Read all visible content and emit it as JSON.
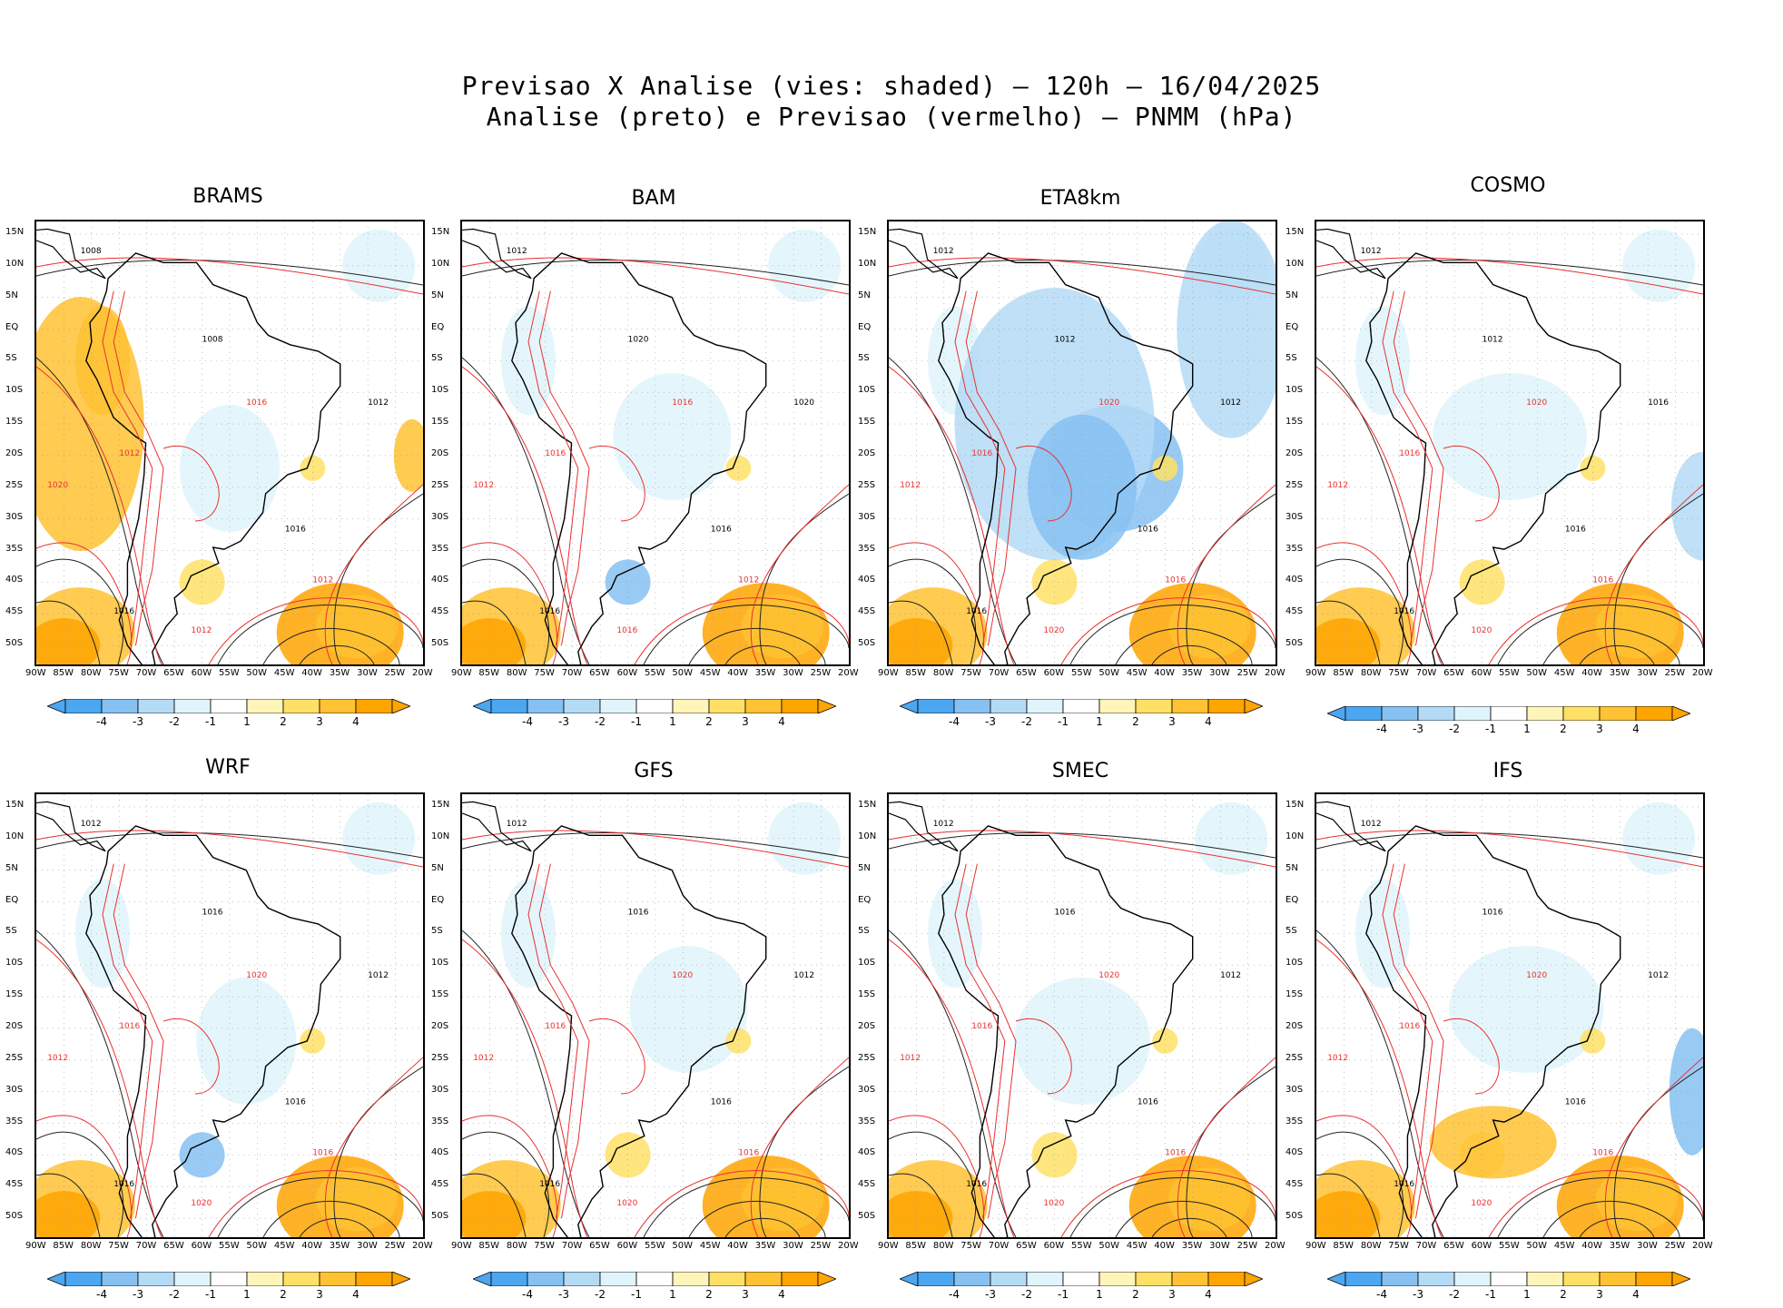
{
  "title": {
    "line1": "Previsao X Analise (vies: shaded) – 120h – 16/04/2025",
    "line2": "Analise (preto) e Previsao (vermelho) – PNMM (hPa)"
  },
  "axes": {
    "lat_labels": [
      "15N",
      "10N",
      "5N",
      "EQ",
      "5S",
      "10S",
      "15S",
      "20S",
      "25S",
      "30S",
      "35S",
      "40S",
      "45S",
      "50S"
    ],
    "lon_labels": [
      "90W",
      "85W",
      "80W",
      "75W",
      "70W",
      "65W",
      "60W",
      "55W",
      "50W",
      "45W",
      "40W",
      "35W",
      "30W",
      "25W",
      "20W"
    ]
  },
  "colorbar": {
    "tick_labels": [
      "-4",
      "-3",
      "-2",
      "-1",
      "1",
      "2",
      "3",
      "4"
    ],
    "colors": [
      "#4da6f0",
      "#86c1f2",
      "#b4dbf6",
      "#dff4fb",
      "#ffffff",
      "#fff5b8",
      "#ffe066",
      "#ffc233",
      "#ffa500"
    ]
  },
  "analysis_color": "#000000",
  "forecast_color": "#e83030",
  "panels": [
    {
      "name": "BRAMS",
      "labels": [
        "1008",
        "1012",
        "1016",
        "1020",
        "1008",
        "1012",
        "1016",
        "1012",
        "1012",
        "1016"
      ]
    },
    {
      "name": "BAM",
      "labels": [
        "1012",
        "1016",
        "1016",
        "1012",
        "1020",
        "1016",
        "1016",
        "1012",
        "1020",
        "1016"
      ]
    },
    {
      "name": "ETA8km",
      "labels": [
        "1012",
        "1016",
        "1016",
        "1012",
        "1012",
        "1020",
        "1016",
        "1016",
        "1012",
        "1020"
      ]
    },
    {
      "name": "COSMO",
      "labels": [
        "1012",
        "1016",
        "1016",
        "1012",
        "1012",
        "1020",
        "1016",
        "1016",
        "1016",
        "1020"
      ]
    },
    {
      "name": "WRF",
      "labels": [
        "1012",
        "1016",
        "1016",
        "1012",
        "1016",
        "1020",
        "1016",
        "1016",
        "1012",
        "1020"
      ]
    },
    {
      "name": "GFS",
      "labels": [
        "1012",
        "1016",
        "1016",
        "1012",
        "1016",
        "1020",
        "1016",
        "1016",
        "1012",
        "1020"
      ]
    },
    {
      "name": "SMEC",
      "labels": [
        "1012",
        "1016",
        "1016",
        "1012",
        "1016",
        "1020",
        "1016",
        "1016",
        "1012",
        "1020"
      ]
    },
    {
      "name": "IFS",
      "labels": [
        "1012",
        "1016",
        "1016",
        "1012",
        "1016",
        "1020",
        "1016",
        "1016",
        "1012",
        "1020"
      ]
    }
  ]
}
